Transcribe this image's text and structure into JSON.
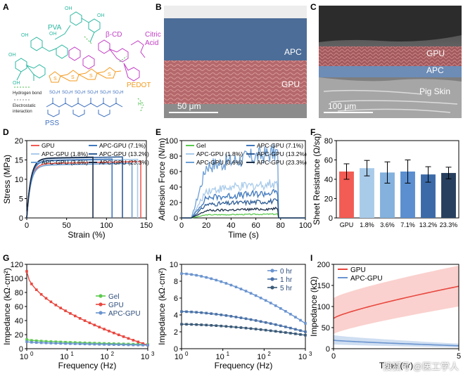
{
  "panels": {
    "A": {
      "letter": "A",
      "labels": {
        "pva": "PVA",
        "bcd": "β-CD",
        "citric": "Citric",
        "acid": "Acid",
        "pedot": "PEDOT",
        "pss": "PSS",
        "hbond": "Hydrogen bond",
        "elec1": "Electrostatic",
        "elec2": "interaction",
        "so3h": "SO₃H"
      }
    },
    "B": {
      "letter": "B",
      "layer_top": "APC",
      "layer_bottom": "GPU",
      "scale": "50 μm"
    },
    "C": {
      "letter": "C",
      "layer_1": "GPU",
      "layer_2": "APC",
      "layer_3": "Pig Skin",
      "scale": "100 μm"
    },
    "D": {
      "letter": "D"
    },
    "E": {
      "letter": "E"
    },
    "F": {
      "letter": "F"
    },
    "G": {
      "letter": "G"
    },
    "H": {
      "letter": "H"
    },
    "I": {
      "letter": "I"
    }
  },
  "watermark": "搜狐号 @医工学人",
  "chart_data": [
    {
      "id": "D",
      "type": "line",
      "xlabel": "Strain (%)",
      "ylabel": "Stress (MPa)",
      "xlim": [
        0,
        150
      ],
      "ylim": [
        0,
        20
      ],
      "xticks": [
        0,
        50,
        100,
        150
      ],
      "yticks": [
        0,
        5,
        10,
        15,
        20
      ],
      "legend": "top-left",
      "series": [
        {
          "name": "GPU",
          "color": "#f25c54",
          "fracture_strain": 143,
          "plateau": 14.0
        },
        {
          "name": "APC-GPU (1.8%)",
          "color": "#a9cbea",
          "fracture_strain": 139,
          "plateau": 14.6
        },
        {
          "name": "APC-GPU (3.6%)",
          "color": "#6e9fd4",
          "fracture_strain": 132,
          "plateau": 13.6
        },
        {
          "name": "APC-GPU (7.1%)",
          "color": "#4078bd",
          "fracture_strain": 107,
          "plateau": 14.8
        },
        {
          "name": "APC-GPU (13.2%)",
          "color": "#2f5d96",
          "fracture_strain": 120,
          "plateau": 15.3
        },
        {
          "name": "APC-GPU (23.3%)",
          "color": "#1c2f4b",
          "fracture_strain": 83,
          "plateau": 15.4
        }
      ]
    },
    {
      "id": "E",
      "type": "line",
      "xlabel": "Time (s)",
      "ylabel": "Adhesion Force (N/m)",
      "xlim": [
        0,
        100
      ],
      "ylim": [
        0,
        100
      ],
      "xticks": [
        0,
        20,
        40,
        60,
        80,
        100
      ],
      "yticks": [
        0,
        20,
        40,
        60,
        80,
        100
      ],
      "legend": "top",
      "series": [
        {
          "name": "Gel",
          "color": "#5cc94f",
          "level": 5
        },
        {
          "name": "APC-GPU (1.8%)",
          "color": "#a9cbea",
          "level": 45
        },
        {
          "name": "APC-GPU (3.6%)",
          "color": "#6e9fd4",
          "level": 85
        },
        {
          "name": "APC-GPU (7.1%)",
          "color": "#4078bd",
          "level": 33
        },
        {
          "name": "APC-GPU (13.2%)",
          "color": "#2f5d96",
          "level": 22
        },
        {
          "name": "APC-GPU (23.3%)",
          "color": "#1c2f4b",
          "level": 12
        }
      ]
    },
    {
      "id": "F",
      "type": "bar",
      "ylabel": "Sheet Resistance (Ω/sq)",
      "ylim": [
        0,
        80
      ],
      "yticks": [
        0,
        20,
        40,
        60,
        80
      ],
      "categories": [
        "GPU",
        "1.8%",
        "3.6%",
        "7.1%",
        "13.2%",
        "23.3%"
      ],
      "values": [
        48,
        51.5,
        47,
        48,
        45,
        46.5
      ],
      "errors": [
        8,
        8,
        11,
        12,
        8,
        6
      ],
      "colors": [
        "#f25c54",
        "#a9cbea",
        "#84b1de",
        "#5b8fd0",
        "#3c6aa8",
        "#27405f"
      ]
    },
    {
      "id": "G",
      "type": "line",
      "xlabel": "Frequency (Hz)",
      "ylabel": "Impedance (kΩ·cm²)",
      "xscale": "log",
      "xlim": [
        1,
        1000
      ],
      "ylim": [
        0,
        120
      ],
      "xticks": [
        "10^0",
        "10^1",
        "10^2",
        "10^3"
      ],
      "yticks": [
        0,
        20,
        40,
        60,
        80,
        100,
        120
      ],
      "legend": "right",
      "series": [
        {
          "name": "Gel",
          "color": "#5cc94f",
          "start": 13,
          "end": 6
        },
        {
          "name": "GPU",
          "color": "#e8473f",
          "start": 110,
          "end": 5
        },
        {
          "name": "APC-GPU",
          "color": "#6a94cf",
          "start": 10,
          "end": 5
        }
      ]
    },
    {
      "id": "H",
      "type": "line",
      "xlabel": "Frequency (Hz)",
      "ylabel": "Impedance (kΩ·cm²)",
      "xscale": "log",
      "xlim": [
        1,
        1000
      ],
      "ylim": [
        0,
        10
      ],
      "xticks": [
        "10^0",
        "10^1",
        "10^2",
        "10^3"
      ],
      "yticks": [
        0,
        2,
        4,
        6,
        8,
        10
      ],
      "legend": "top-right",
      "series": [
        {
          "name": "0 hr",
          "color": "#6a94cf",
          "start": 8.9,
          "end": 3.0
        },
        {
          "name": "1 hr",
          "color": "#4a72a8",
          "start": 4.4,
          "end": 2.0
        },
        {
          "name": "5 hr",
          "color": "#3a5a78",
          "start": 2.9,
          "end": 1.6
        }
      ]
    },
    {
      "id": "I",
      "type": "area",
      "xlabel": "Time (hr)",
      "ylabel": "Impedance (kΩ)",
      "xlim": [
        0,
        5
      ],
      "ylim": [
        0,
        200
      ],
      "xticks": [
        0,
        5
      ],
      "yticks": [
        0,
        50,
        100,
        150,
        200
      ],
      "legend": "top-left",
      "series": [
        {
          "name": "GPU",
          "color": "#e8473f",
          "band": "#f9c9c6",
          "start": 72,
          "end": 148,
          "band_low_start": 35,
          "band_low_end": 100,
          "band_high_start": 120,
          "band_high_end": 197
        },
        {
          "name": "APC-GPU",
          "color": "#6a94cf",
          "band": "#c7d8ef",
          "start": 20,
          "end": 7,
          "band_low_start": 10,
          "band_low_end": 3,
          "band_high_start": 32,
          "band_high_end": 12
        }
      ]
    }
  ]
}
